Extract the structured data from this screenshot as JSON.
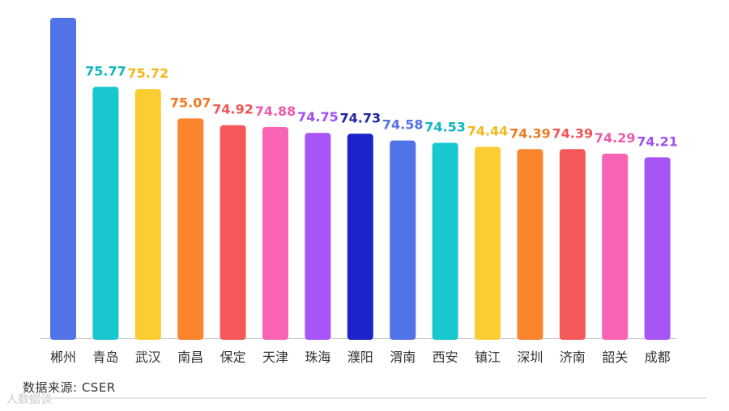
{
  "chart_data": {
    "type": "bar",
    "categories": [
      "郴州",
      "青岛",
      "武汉",
      "南昌",
      "保定",
      "天津",
      "珠海",
      "濮阳",
      "渭南",
      "西安",
      "镇江",
      "深圳",
      "济南",
      "韶关",
      "成都"
    ],
    "values": [
      null,
      75.77,
      75.72,
      75.07,
      74.92,
      74.88,
      74.75,
      74.73,
      74.58,
      74.53,
      74.44,
      74.39,
      74.39,
      74.29,
      74.21
    ],
    "labels": [
      "",
      "75.77",
      "75.72",
      "75.07",
      "74.92",
      "74.88",
      "74.75",
      "74.73",
      "74.58",
      "74.53",
      "74.44",
      "74.39",
      "74.39",
      "74.29",
      "74.21"
    ],
    "colors": [
      "#5272e8",
      "#19c8cf",
      "#fccc33",
      "#fb842f",
      "#f5595a",
      "#f963b4",
      "#a855f7",
      "#1c24c9",
      "#5272e8",
      "#19c8cf",
      "#fccc33",
      "#fb842f",
      "#f5595a",
      "#f963b4",
      "#a855f7"
    ],
    "label_colors": [
      "#5272e8",
      "#0fb5bd",
      "#f2b81c",
      "#f07a22",
      "#f05555",
      "#ef5aa9",
      "#a04ff0",
      "#1c24a0",
      "#5272e8",
      "#0fb5bd",
      "#f2b81c",
      "#f07a22",
      "#f05555",
      "#ef5aa9",
      "#a04ff0"
    ],
    "first_value_estimate": 77.3,
    "ylim": [
      70.2,
      77.55
    ],
    "title": "",
    "xlabel": "",
    "ylabel": "",
    "grid": false,
    "legend": "none"
  },
  "source_text": "数据来源: CSER",
  "watermark_text": "人数据谈"
}
